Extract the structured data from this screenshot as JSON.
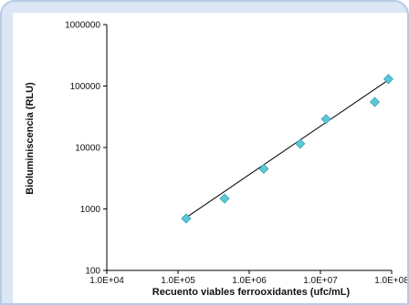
{
  "chart_data": {
    "type": "scatter",
    "xlabel": "Recuento viables ferrooxidantes (ufc/mL)",
    "ylabel": "Bioluminiscencia (RLU)",
    "x_scale": "log",
    "y_scale": "log",
    "xlim": [
      10000,
      100000000
    ],
    "ylim": [
      100,
      1000000
    ],
    "x_tick_labels": [
      "1.0E+04",
      "1.0E+05",
      "1.0E+06",
      "1.0E+07",
      "1.0E+08"
    ],
    "y_tick_labels": [
      "100",
      "1000",
      "10000",
      "100000",
      "1000000"
    ],
    "grid": false,
    "legend": false,
    "marker": "diamond",
    "marker_color": "#5bc8d8",
    "trendline": {
      "type": "linear-log",
      "from": [
        120000,
        680
      ],
      "to": [
        85000000,
        120000
      ]
    },
    "points": [
      {
        "x": 130000,
        "y": 700
      },
      {
        "x": 450000,
        "y": 1480
      },
      {
        "x": 1600000,
        "y": 4500
      },
      {
        "x": 5200000,
        "y": 11500
      },
      {
        "x": 12000000,
        "y": 29000
      },
      {
        "x": 58000000,
        "y": 55000
      },
      {
        "x": 90000000,
        "y": 130000
      }
    ]
  }
}
